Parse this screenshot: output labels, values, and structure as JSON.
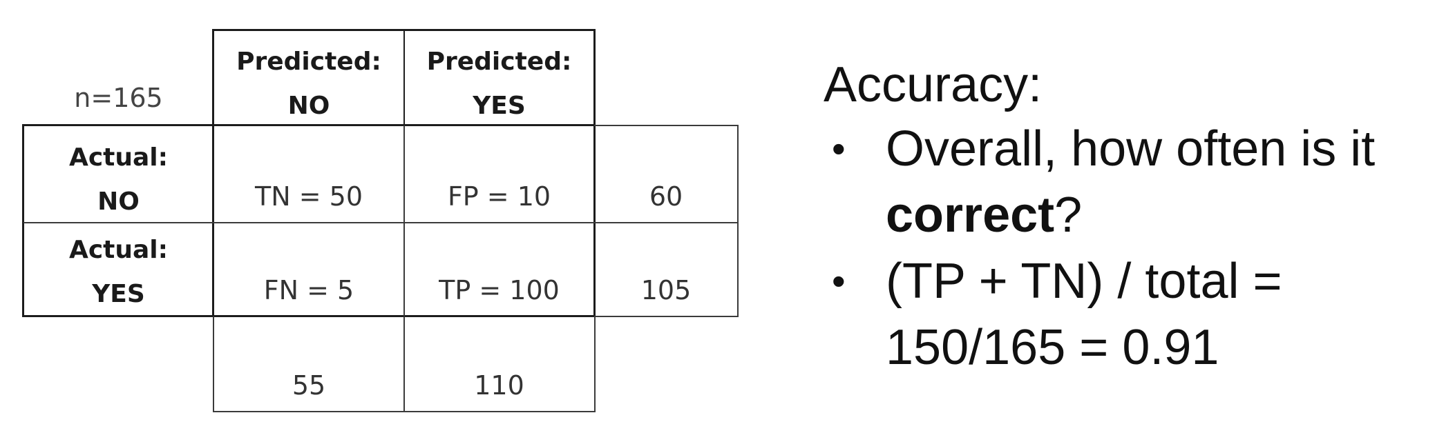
{
  "matrix": {
    "n_label": "n=165",
    "col_headers": [
      {
        "top": "Predicted:",
        "bottom": "NO"
      },
      {
        "top": "Predicted:",
        "bottom": "YES"
      }
    ],
    "row_headers": [
      {
        "top": "Actual:",
        "bottom": "NO"
      },
      {
        "top": "Actual:",
        "bottom": "YES"
      }
    ],
    "cells": [
      [
        "TN = 50",
        "FP = 10"
      ],
      [
        "FN = 5",
        "TP = 100"
      ]
    ],
    "row_totals": [
      "60",
      "105"
    ],
    "col_totals": [
      "55",
      "110"
    ]
  },
  "panel": {
    "title": "Accuracy:",
    "bullets": [
      {
        "line1": "Overall, how often is it",
        "line2_bold": "correct",
        "line2_rest": "?"
      },
      {
        "line1": "(TP + TN) / total =",
        "line2": "150/165 = 0.91"
      }
    ],
    "bullet_glyph": "•"
  }
}
